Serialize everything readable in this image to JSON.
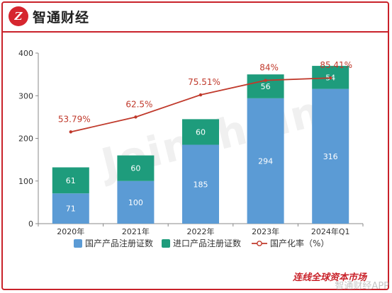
{
  "header": {
    "logo_text": "Z",
    "brand": "智通财经"
  },
  "watermark": "Joinchain",
  "footer": {
    "text": "连线全球资本市场",
    "app_watermark": "智通财经APP"
  },
  "colors": {
    "domestic": "#5b9bd5",
    "imported": "#1e9c7c",
    "rate": "#c0392b",
    "accent": "#c9222a"
  },
  "chart_data": {
    "type": "bar",
    "stacked": true,
    "categories": [
      "2020年",
      "2021年",
      "2022年",
      "2023年",
      "2024年Q1"
    ],
    "series": [
      {
        "name": "国产产品注册证数",
        "values": [
          71,
          100,
          185,
          294,
          316
        ]
      },
      {
        "name": "进口产品注册证数",
        "values": [
          61,
          60,
          60,
          56,
          54
        ]
      }
    ],
    "line_series": {
      "name": "国产化率（%）",
      "values": [
        53.79,
        62.5,
        75.51,
        84,
        85.41
      ],
      "labels": [
        "53.79%",
        "62.5%",
        "75.51%",
        "84%",
        "85.41%"
      ]
    },
    "ylim": [
      0,
      400
    ],
    "yticks": [
      0,
      100,
      200,
      300,
      400
    ],
    "grid": false,
    "legend": "bottom"
  }
}
